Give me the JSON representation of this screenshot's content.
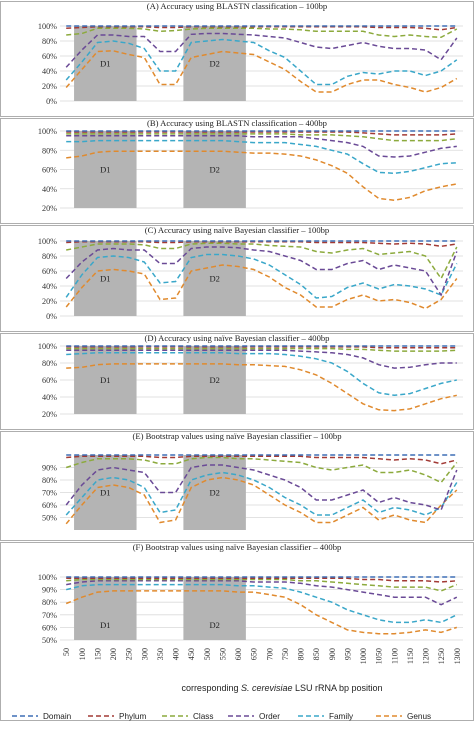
{
  "chart_data": {
    "x": [
      50,
      100,
      150,
      200,
      250,
      300,
      350,
      400,
      450,
      500,
      550,
      600,
      650,
      700,
      750,
      800,
      850,
      900,
      950,
      1000,
      1050,
      1100,
      1150,
      1200,
      1250,
      1300
    ],
    "xlabel_parts": [
      "corresponding ",
      "S. cerevisiae",
      " LSU rRNA bp position"
    ],
    "regions": [
      {
        "label": "D1",
        "from": 100,
        "to": 250
      },
      {
        "label": "D2",
        "from": 450,
        "to": 600
      }
    ],
    "series_names": [
      "Domain",
      "Phylum",
      "Class",
      "Order",
      "Family",
      "Genus"
    ],
    "colors": {
      "Domain": "#3f6fb5",
      "Phylum": "#a23a35",
      "Class": "#8caa3d",
      "Order": "#6a4a96",
      "Family": "#3aa7c9",
      "Genus": "#e08a2e",
      "region": "#b4b4b4",
      "grid": "#d9d9d9",
      "panel_border": "#9a9a9a"
    },
    "panels": [
      {
        "title": "(A) Accuracy using BLASTN classification – 100bp",
        "ylim": [
          0,
          100
        ],
        "yticks": [
          "0%",
          "20%",
          "40%",
          "60%",
          "80%",
          "100%"
        ],
        "series": {
          "Domain": [
            100,
            100,
            100,
            100,
            100,
            100,
            100,
            100,
            100,
            100,
            100,
            100,
            100,
            100,
            100,
            100,
            100,
            100,
            100,
            100,
            100,
            100,
            100,
            100,
            100,
            100
          ],
          "Phylum": [
            97,
            98,
            99,
            99,
            99,
            99,
            98,
            98,
            99,
            99,
            99,
            99,
            99,
            99,
            99,
            99,
            99,
            99,
            99,
            99,
            98,
            98,
            98,
            97,
            95,
            98
          ],
          "Class": [
            88,
            90,
            97,
            97,
            97,
            96,
            93,
            94,
            96,
            97,
            97,
            97,
            97,
            96,
            96,
            95,
            93,
            93,
            93,
            93,
            88,
            86,
            88,
            86,
            85,
            96
          ],
          "Order": [
            45,
            68,
            88,
            88,
            86,
            86,
            66,
            66,
            89,
            90,
            90,
            89,
            88,
            86,
            84,
            78,
            72,
            70,
            74,
            78,
            73,
            70,
            70,
            68,
            55,
            84
          ],
          "Family": [
            28,
            52,
            78,
            80,
            77,
            70,
            40,
            40,
            78,
            80,
            82,
            80,
            78,
            67,
            58,
            40,
            22,
            22,
            33,
            38,
            36,
            40,
            40,
            34,
            40,
            55
          ],
          "Genus": [
            18,
            42,
            66,
            67,
            62,
            58,
            22,
            22,
            58,
            62,
            66,
            64,
            62,
            52,
            42,
            26,
            12,
            12,
            22,
            28,
            28,
            22,
            18,
            12,
            18,
            30
          ]
        }
      },
      {
        "title": "(B) Accuracy using BLASTN classification – 400bp",
        "ylim": [
          20,
          100
        ],
        "yticks": [
          "20%",
          "40%",
          "60%",
          "80%",
          "100%"
        ],
        "series": {
          "Domain": [
            100,
            100,
            100,
            100,
            100,
            100,
            100,
            100,
            100,
            100,
            100,
            100,
            100,
            100,
            100,
            100,
            100,
            100,
            100,
            100,
            100,
            100,
            100,
            100,
            100,
            100
          ],
          "Phylum": [
            99,
            99,
            99,
            99,
            99,
            99,
            99,
            99,
            99,
            99,
            99,
            99,
            99,
            99,
            99,
            99,
            99,
            99,
            99,
            98,
            97,
            96,
            96,
            96,
            96,
            97
          ],
          "Class": [
            97,
            97,
            97,
            97,
            97,
            97,
            97,
            97,
            97,
            97,
            97,
            97,
            97,
            97,
            97,
            96,
            96,
            96,
            95,
            94,
            92,
            90,
            90,
            90,
            90,
            92
          ],
          "Order": [
            95,
            95,
            95,
            95,
            95,
            95,
            95,
            95,
            95,
            95,
            95,
            95,
            94,
            94,
            94,
            94,
            92,
            90,
            88,
            84,
            74,
            73,
            74,
            78,
            82,
            84
          ],
          "Family": [
            89,
            89,
            90,
            90,
            90,
            90,
            90,
            90,
            90,
            90,
            90,
            89,
            88,
            88,
            88,
            86,
            84,
            80,
            76,
            66,
            57,
            56,
            58,
            62,
            66,
            67
          ],
          "Genus": [
            72,
            74,
            78,
            79,
            79,
            79,
            79,
            79,
            79,
            79,
            79,
            78,
            77,
            77,
            76,
            74,
            70,
            64,
            56,
            42,
            30,
            28,
            31,
            38,
            42,
            45
          ]
        }
      },
      {
        "title": "(C) Accuracy using naïve Bayesian classifier – 100bp",
        "ylim": [
          0,
          100
        ],
        "yticks": [
          "0%",
          "20%",
          "40%",
          "60%",
          "80%",
          "100%"
        ],
        "series": {
          "Domain": [
            100,
            100,
            100,
            100,
            100,
            100,
            100,
            100,
            100,
            100,
            100,
            100,
            100,
            100,
            100,
            100,
            100,
            100,
            100,
            100,
            100,
            100,
            100,
            100,
            100,
            100
          ],
          "Phylum": [
            98,
            99,
            99,
            99,
            99,
            99,
            98,
            98,
            99,
            99,
            99,
            99,
            99,
            99,
            99,
            99,
            98,
            98,
            98,
            98,
            97,
            96,
            97,
            96,
            93,
            96
          ],
          "Class": [
            88,
            92,
            96,
            96,
            96,
            95,
            90,
            90,
            96,
            97,
            97,
            96,
            96,
            94,
            93,
            92,
            86,
            84,
            88,
            90,
            82,
            84,
            86,
            80,
            50,
            92
          ],
          "Order": [
            50,
            72,
            88,
            90,
            88,
            88,
            70,
            70,
            90,
            92,
            92,
            91,
            88,
            86,
            80,
            74,
            62,
            62,
            70,
            74,
            62,
            68,
            64,
            60,
            28,
            86
          ],
          "Family": [
            25,
            55,
            78,
            80,
            78,
            72,
            44,
            46,
            78,
            82,
            82,
            80,
            76,
            68,
            55,
            42,
            24,
            26,
            38,
            44,
            36,
            42,
            40,
            36,
            28,
            70
          ],
          "Genus": [
            12,
            38,
            60,
            62,
            60,
            56,
            22,
            24,
            60,
            64,
            68,
            66,
            62,
            52,
            38,
            28,
            12,
            12,
            22,
            28,
            20,
            22,
            18,
            10,
            22,
            50
          ]
        }
      },
      {
        "title": "(D) Accuracy using naïve Bayesian classifier – 400bp",
        "ylim": [
          20,
          100
        ],
        "yticks": [
          "20%",
          "40%",
          "60%",
          "80%",
          "100%"
        ],
        "series": {
          "Domain": [
            100,
            100,
            100,
            100,
            100,
            100,
            100,
            100,
            100,
            100,
            100,
            100,
            100,
            100,
            100,
            100,
            100,
            100,
            100,
            100,
            100,
            100,
            100,
            100,
            100,
            100
          ],
          "Phylum": [
            99,
            99,
            99,
            99,
            99,
            99,
            99,
            99,
            99,
            99,
            99,
            99,
            99,
            99,
            99,
            99,
            99,
            99,
            99,
            99,
            98,
            98,
            98,
            98,
            98,
            98
          ],
          "Class": [
            97,
            97,
            97,
            97,
            97,
            97,
            97,
            97,
            97,
            97,
            97,
            97,
            97,
            97,
            97,
            97,
            97,
            97,
            96,
            96,
            95,
            94,
            94,
            94,
            94,
            95
          ],
          "Order": [
            95,
            95,
            95,
            95,
            95,
            95,
            95,
            95,
            95,
            95,
            95,
            95,
            95,
            95,
            95,
            94,
            93,
            92,
            90,
            86,
            78,
            74,
            75,
            78,
            80,
            80
          ],
          "Family": [
            90,
            91,
            92,
            92,
            92,
            92,
            92,
            92,
            92,
            92,
            92,
            91,
            91,
            91,
            90,
            88,
            85,
            80,
            70,
            56,
            45,
            42,
            44,
            50,
            56,
            60
          ],
          "Genus": [
            74,
            75,
            78,
            79,
            79,
            79,
            79,
            79,
            79,
            79,
            79,
            78,
            78,
            77,
            76,
            72,
            66,
            56,
            44,
            32,
            25,
            24,
            26,
            32,
            38,
            42
          ]
        }
      },
      {
        "title": "(E) Bootstrap values using naïve Bayesian classifier – 100bp",
        "ylim": [
          40,
          100
        ],
        "yticks": [
          "50%",
          "60%",
          "70%",
          "80%",
          "90%"
        ],
        "series": {
          "Domain": [
            100,
            100,
            100,
            100,
            100,
            100,
            100,
            100,
            100,
            100,
            100,
            100,
            100,
            100,
            100,
            100,
            100,
            100,
            100,
            100,
            100,
            100,
            100,
            100,
            100,
            100
          ],
          "Phylum": [
            98,
            99,
            99,
            99,
            99,
            99,
            98,
            98,
            99,
            99,
            99,
            99,
            99,
            99,
            99,
            99,
            98,
            98,
            98,
            98,
            97,
            96,
            97,
            96,
            93,
            96
          ],
          "Class": [
            90,
            94,
            97,
            97,
            97,
            96,
            93,
            93,
            97,
            98,
            98,
            97,
            97,
            96,
            95,
            94,
            90,
            88,
            90,
            92,
            86,
            86,
            88,
            84,
            78,
            94
          ],
          "Order": [
            60,
            76,
            88,
            90,
            88,
            86,
            70,
            70,
            90,
            92,
            92,
            90,
            88,
            84,
            80,
            74,
            64,
            64,
            68,
            72,
            62,
            66,
            62,
            60,
            56,
            88
          ],
          "Family": [
            52,
            66,
            80,
            82,
            80,
            74,
            54,
            56,
            80,
            84,
            86,
            84,
            80,
            74,
            66,
            60,
            52,
            52,
            58,
            64,
            54,
            58,
            56,
            52,
            58,
            78
          ],
          "Genus": [
            45,
            60,
            74,
            76,
            74,
            68,
            46,
            48,
            74,
            80,
            82,
            80,
            76,
            68,
            60,
            54,
            46,
            46,
            52,
            58,
            48,
            52,
            48,
            46,
            60,
            72
          ]
        }
      },
      {
        "title": "(F) Bootstrap values using naïve Bayesian classifier – 400bp",
        "ylim": [
          50,
          100
        ],
        "yticks": [
          "50%",
          "60%",
          "70%",
          "80%",
          "90%",
          "100%"
        ],
        "series": {
          "Domain": [
            100,
            100,
            100,
            100,
            100,
            100,
            100,
            100,
            100,
            100,
            100,
            100,
            100,
            100,
            100,
            100,
            100,
            100,
            100,
            100,
            100,
            100,
            100,
            100,
            100,
            100
          ],
          "Phylum": [
            99,
            99,
            99,
            99,
            99,
            99,
            99,
            99,
            99,
            99,
            99,
            99,
            99,
            99,
            99,
            99,
            99,
            99,
            99,
            98,
            98,
            97,
            97,
            97,
            96,
            97
          ],
          "Class": [
            97,
            98,
            98,
            98,
            98,
            98,
            98,
            98,
            98,
            98,
            98,
            98,
            98,
            98,
            98,
            97,
            97,
            96,
            95,
            94,
            93,
            92,
            92,
            92,
            89,
            94
          ],
          "Order": [
            94,
            96,
            97,
            97,
            97,
            97,
            97,
            97,
            97,
            97,
            97,
            97,
            96,
            96,
            96,
            95,
            93,
            92,
            90,
            88,
            86,
            84,
            84,
            84,
            78,
            84
          ],
          "Family": [
            90,
            93,
            94,
            94,
            94,
            94,
            94,
            94,
            94,
            94,
            94,
            93,
            93,
            92,
            91,
            88,
            84,
            80,
            74,
            70,
            66,
            64,
            64,
            66,
            64,
            70
          ],
          "Genus": [
            79,
            84,
            88,
            89,
            89,
            89,
            89,
            89,
            89,
            89,
            89,
            88,
            88,
            86,
            84,
            78,
            70,
            64,
            58,
            56,
            55,
            55,
            56,
            58,
            56,
            60
          ]
        }
      }
    ]
  }
}
